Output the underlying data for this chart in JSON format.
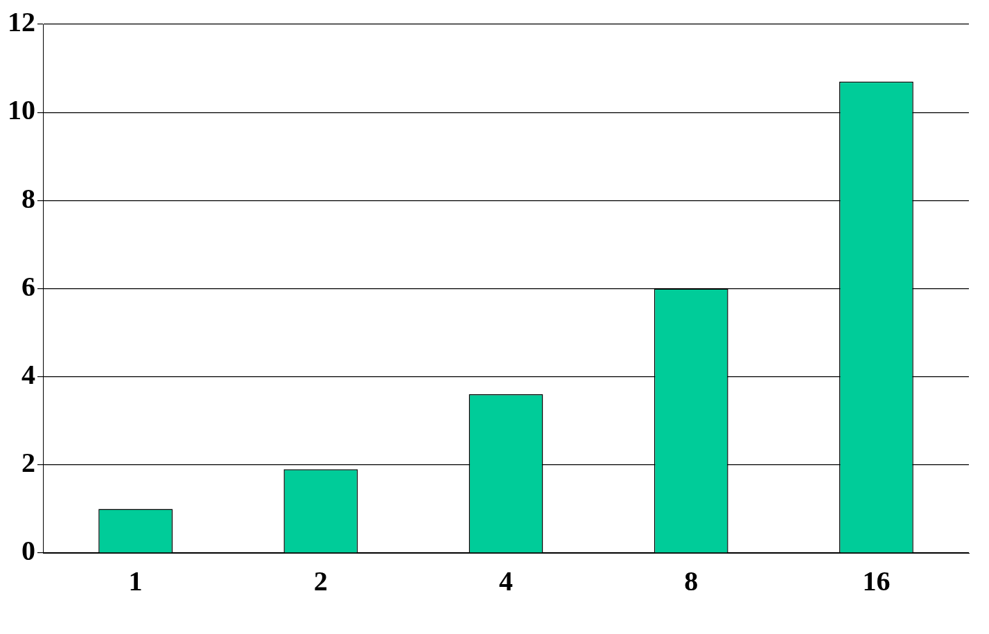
{
  "chart_data": {
    "type": "bar",
    "categories": [
      "1",
      "2",
      "4",
      "8",
      "16"
    ],
    "series": [
      {
        "color": "#00cc99",
        "values": [
          1.0,
          1.9,
          3.6,
          6.0,
          10.7
        ]
      }
    ],
    "ylim": [
      0,
      12
    ],
    "yticks": [
      0,
      2,
      4,
      6,
      8,
      10,
      12
    ],
    "grid": "y",
    "legend": false
  }
}
